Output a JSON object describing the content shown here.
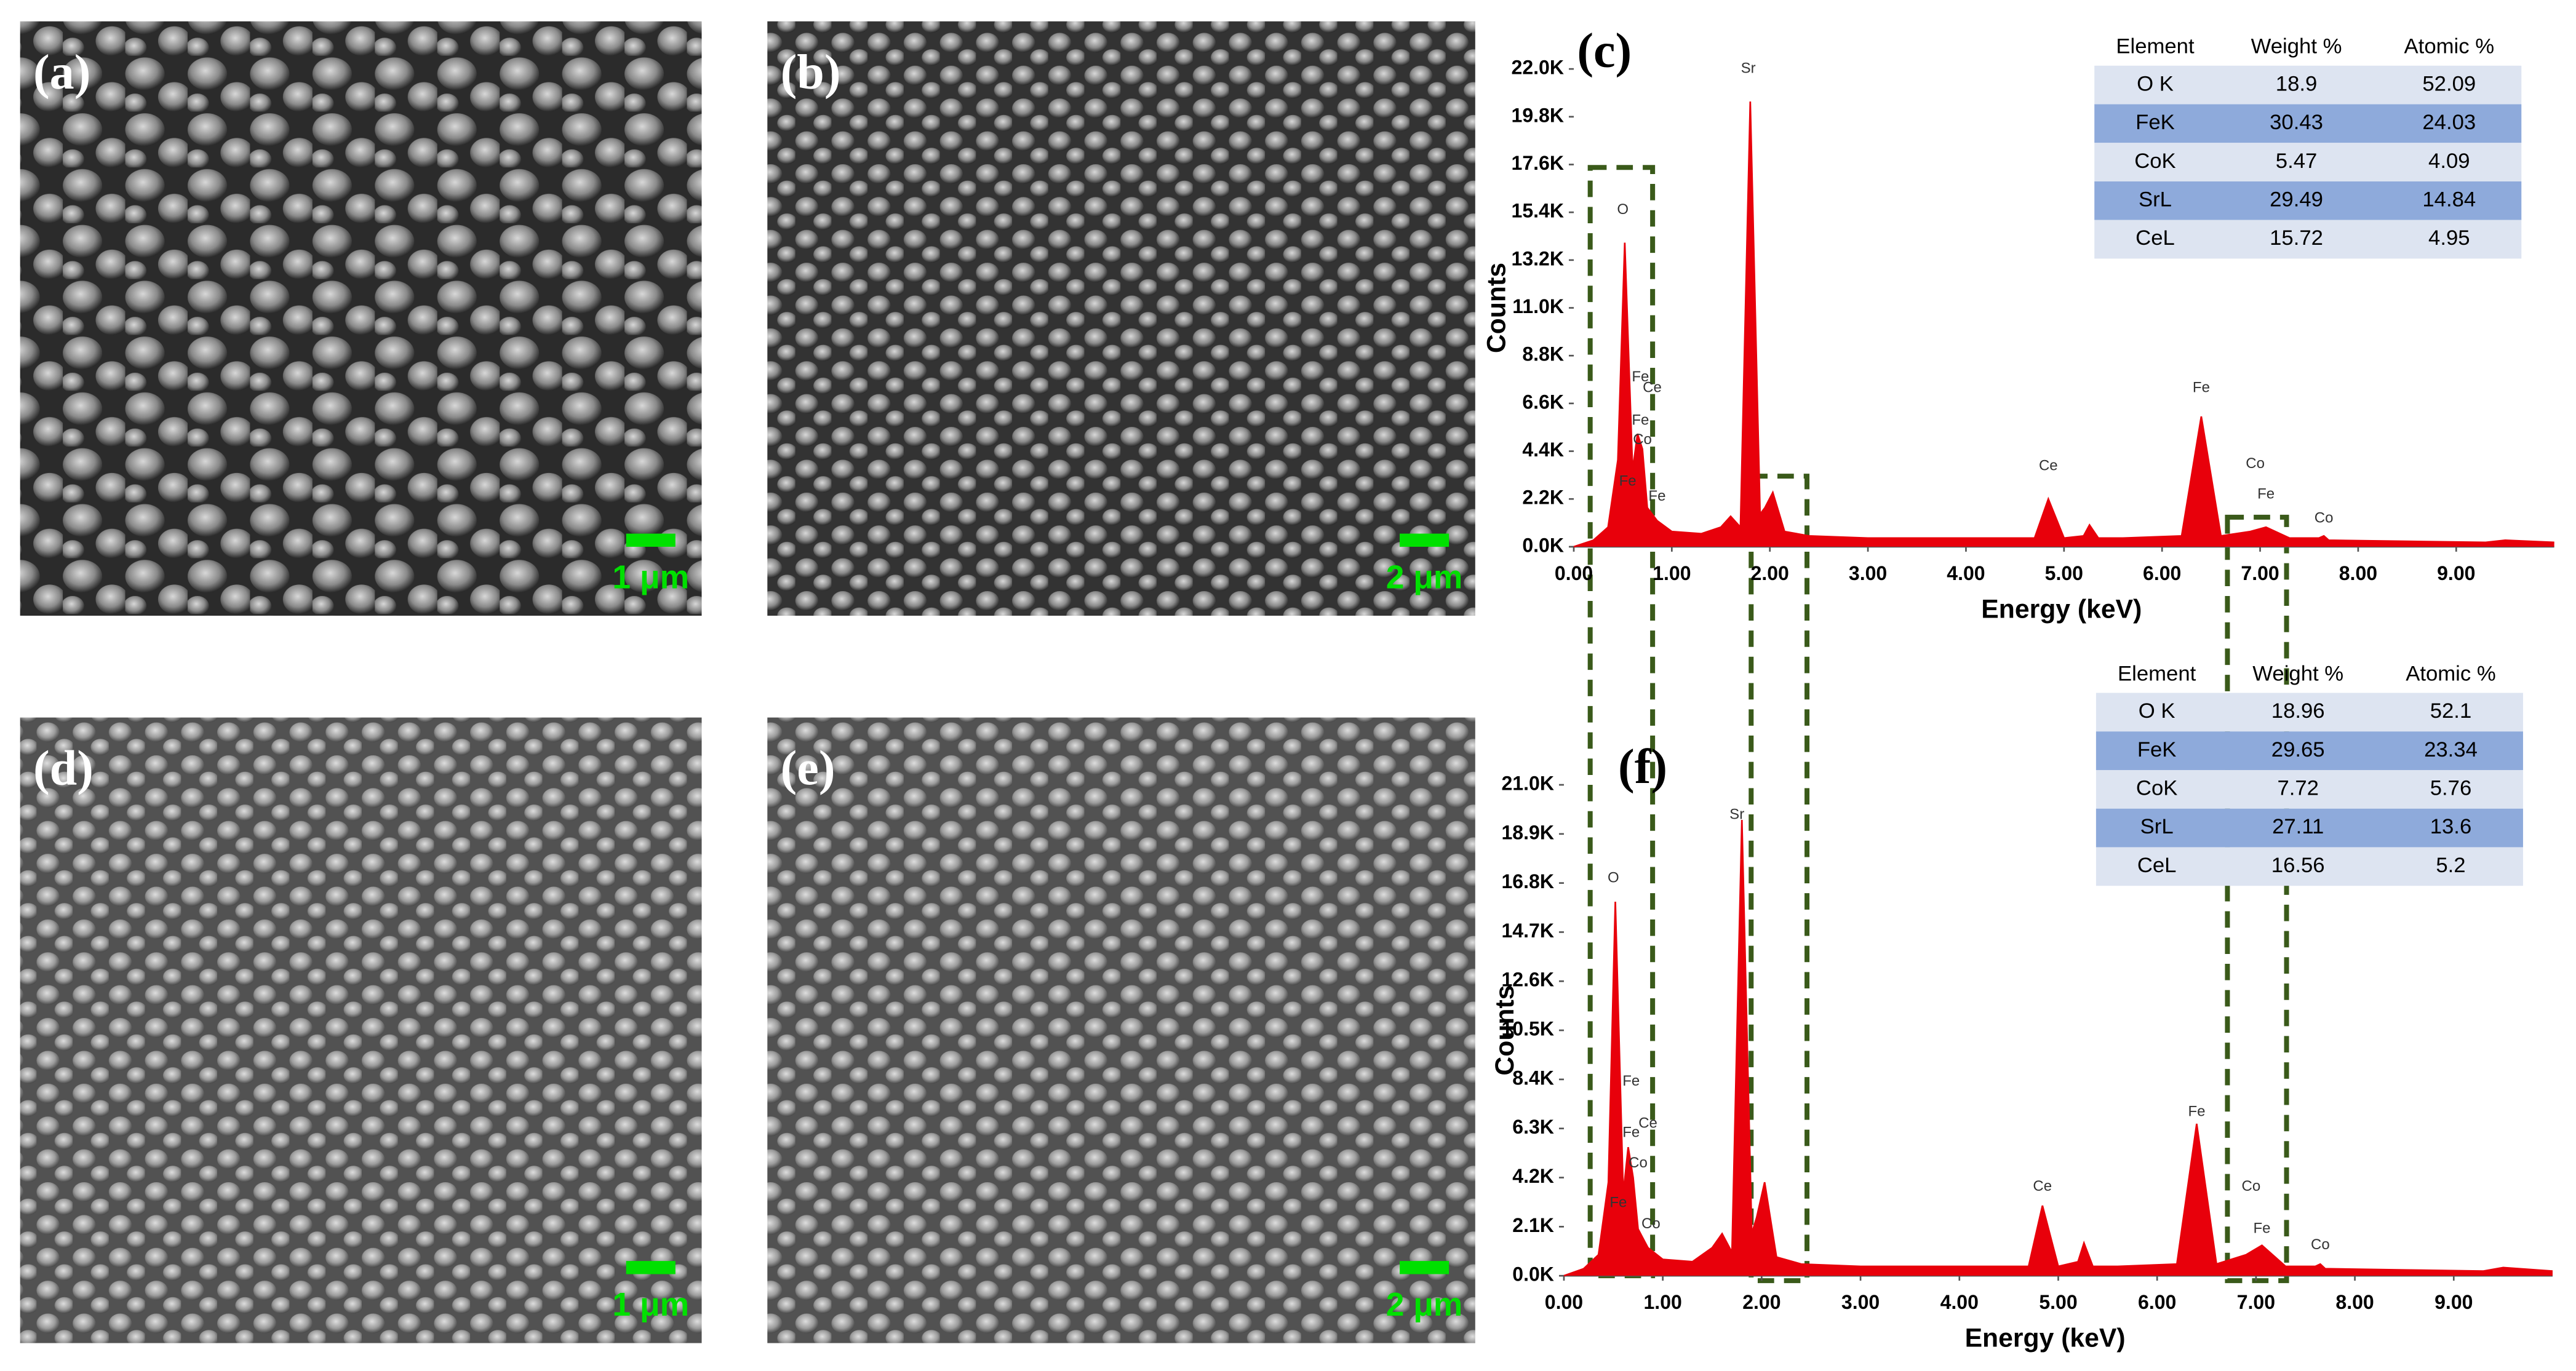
{
  "images": [
    {
      "label": "(a)",
      "scale": "1 μm"
    },
    {
      "label": "(b)",
      "scale": "2 μm"
    },
    {
      "label": "(d)",
      "scale": "1 μm"
    },
    {
      "label": "(e)",
      "scale": "2 μm"
    }
  ],
  "chart_data": [
    {
      "type": "area",
      "label": "(c)",
      "ylabel": "Counts",
      "xlabel": "Energy (keV)",
      "color": "#e8000b",
      "x": [
        0,
        0.2,
        0.35,
        0.45,
        0.52,
        0.6,
        0.65,
        0.7,
        0.75,
        0.85,
        1.0,
        1.3,
        1.5,
        1.6,
        1.7,
        1.8,
        1.9,
        1.95,
        2.03,
        2.15,
        2.4,
        3.0,
        4.0,
        4.7,
        4.84,
        5.0,
        5.2,
        5.26,
        5.35,
        5.6,
        6.2,
        6.4,
        6.6,
        6.9,
        7.06,
        7.3,
        7.6,
        7.65,
        7.7,
        8.5,
        9.3,
        9.5,
        10
      ],
      "values": [
        0,
        300,
        900,
        4000,
        14000,
        3500,
        5200,
        4500,
        1800,
        1200,
        700,
        600,
        900,
        1400,
        900,
        20500,
        1500,
        1800,
        2500,
        700,
        500,
        400,
        400,
        400,
        2200,
        400,
        500,
        1000,
        400,
        400,
        500,
        6000,
        500,
        700,
        900,
        400,
        400,
        500,
        300,
        250,
        200,
        300,
        200
      ],
      "xlim": [
        0,
        10
      ],
      "ylim": [
        0,
        22000
      ],
      "xticks": [
        {
          "value": 0,
          "label": "0.00"
        },
        {
          "value": 1,
          "label": "1.00"
        },
        {
          "value": 2,
          "label": "2.00"
        },
        {
          "value": 3,
          "label": "3.00"
        },
        {
          "value": 4,
          "label": "4.00"
        },
        {
          "value": 5,
          "label": "5.00"
        },
        {
          "value": 6,
          "label": "6.00"
        },
        {
          "value": 7,
          "label": "7.00"
        },
        {
          "value": 8,
          "label": "8.00"
        },
        {
          "value": 9,
          "label": "9.00"
        }
      ],
      "yticks": [
        {
          "value": 0,
          "label": "0.0K"
        },
        {
          "value": 2200,
          "label": "2.2K"
        },
        {
          "value": 4400,
          "label": "4.4K"
        },
        {
          "value": 6600,
          "label": "6.6K"
        },
        {
          "value": 8800,
          "label": "8.8K"
        },
        {
          "value": 11000,
          "label": "11.0K"
        },
        {
          "value": 13200,
          "label": "13.2K"
        },
        {
          "value": 15400,
          "label": "15.4K"
        },
        {
          "value": 17600,
          "label": "17.6K"
        },
        {
          "value": 19800,
          "label": "19.8K"
        },
        {
          "value": 22000,
          "label": "22.0K"
        }
      ],
      "annotations": [
        {
          "text": "O",
          "x": 0.5,
          "y": 15500
        },
        {
          "text": "Fe",
          "x": 0.68,
          "y": 7800
        },
        {
          "text": "Ce",
          "x": 0.8,
          "y": 7300
        },
        {
          "text": "Fe",
          "x": 0.68,
          "y": 5800
        },
        {
          "text": "Co",
          "x": 0.7,
          "y": 4900
        },
        {
          "text": "Fe",
          "x": 0.55,
          "y": 3000
        },
        {
          "text": "Fe",
          "x": 0.85,
          "y": 2300
        },
        {
          "text": "Sr",
          "x": 1.78,
          "y": 22000
        },
        {
          "text": "Ce",
          "x": 4.84,
          "y": 3700
        },
        {
          "text": "Fe",
          "x": 6.4,
          "y": 7300
        },
        {
          "text": "Co",
          "x": 6.95,
          "y": 3800
        },
        {
          "text": "Fe",
          "x": 7.06,
          "y": 2400
        },
        {
          "text": "Co",
          "x": 7.65,
          "y": 1300
        }
      ],
      "table": {
        "header": [
          "Element",
          "Weight %",
          "Atomic %"
        ],
        "rows": [
          [
            "O K",
            18.9,
            52.09
          ],
          [
            "FeK",
            30.43,
            24.03
          ],
          [
            "CoK",
            5.47,
            4.09
          ],
          [
            "SrL",
            29.49,
            14.84
          ],
          [
            "CeL",
            15.72,
            4.95
          ]
        ]
      }
    },
    {
      "type": "area",
      "label": "(f)",
      "ylabel": "Counts",
      "xlabel": "Energy (keV)",
      "color": "#e8000b",
      "x": [
        0,
        0.2,
        0.35,
        0.45,
        0.52,
        0.6,
        0.65,
        0.7,
        0.75,
        0.85,
        1.0,
        1.3,
        1.5,
        1.6,
        1.7,
        1.8,
        1.9,
        1.95,
        2.03,
        2.15,
        2.4,
        3.0,
        4.0,
        4.7,
        4.84,
        5.0,
        5.2,
        5.26,
        5.35,
        5.6,
        6.2,
        6.4,
        6.6,
        6.9,
        7.06,
        7.3,
        7.6,
        7.65,
        7.7,
        8.5,
        9.3,
        9.5,
        10
      ],
      "values": [
        0,
        300,
        900,
        4000,
        16000,
        3500,
        5500,
        4200,
        2000,
        1200,
        700,
        600,
        1200,
        1800,
        1000,
        19500,
        1800,
        2500,
        4000,
        800,
        500,
        400,
        400,
        400,
        3000,
        400,
        600,
        1400,
        400,
        400,
        500,
        6500,
        500,
        900,
        1300,
        400,
        400,
        500,
        300,
        250,
        200,
        350,
        200
      ],
      "xlim": [
        0,
        10
      ],
      "ylim": [
        0,
        21000
      ],
      "xticks": [
        {
          "value": 0,
          "label": "0.00"
        },
        {
          "value": 1,
          "label": "1.00"
        },
        {
          "value": 2,
          "label": "2.00"
        },
        {
          "value": 3,
          "label": "3.00"
        },
        {
          "value": 4,
          "label": "4.00"
        },
        {
          "value": 5,
          "label": "5.00"
        },
        {
          "value": 6,
          "label": "6.00"
        },
        {
          "value": 7,
          "label": "7.00"
        },
        {
          "value": 8,
          "label": "8.00"
        },
        {
          "value": 9,
          "label": "9.00"
        }
      ],
      "yticks": [
        {
          "value": 0,
          "label": "0.0K"
        },
        {
          "value": 2100,
          "label": "2.1K"
        },
        {
          "value": 4200,
          "label": "4.2K"
        },
        {
          "value": 6300,
          "label": "6.3K"
        },
        {
          "value": 8400,
          "label": "8.4K"
        },
        {
          "value": 10500,
          "label": "10.5K"
        },
        {
          "value": 12600,
          "label": "12.6K"
        },
        {
          "value": 14700,
          "label": "14.7K"
        },
        {
          "value": 16800,
          "label": "16.8K"
        },
        {
          "value": 18900,
          "label": "18.9K"
        },
        {
          "value": 21000,
          "label": "21.0K"
        }
      ],
      "annotations": [
        {
          "text": "O",
          "x": 0.5,
          "y": 17000
        },
        {
          "text": "Fe",
          "x": 0.68,
          "y": 8300
        },
        {
          "text": "Ce",
          "x": 0.85,
          "y": 6500
        },
        {
          "text": "Fe",
          "x": 0.68,
          "y": 6100
        },
        {
          "text": "Co",
          "x": 0.75,
          "y": 4800
        },
        {
          "text": "Fe",
          "x": 0.55,
          "y": 3100
        },
        {
          "text": "Co",
          "x": 0.88,
          "y": 2200
        },
        {
          "text": "Sr",
          "x": 1.75,
          "y": 19700
        },
        {
          "text": "Ce",
          "x": 4.84,
          "y": 3800
        },
        {
          "text": "Fe",
          "x": 6.4,
          "y": 7000
        },
        {
          "text": "Co",
          "x": 6.95,
          "y": 3800
        },
        {
          "text": "Fe",
          "x": 7.06,
          "y": 2000
        },
        {
          "text": "Co",
          "x": 7.65,
          "y": 1300
        }
      ],
      "table": {
        "header": [
          "Element",
          "Weight %",
          "Atomic %"
        ],
        "rows": [
          [
            "O K",
            18.96,
            52.1
          ],
          [
            "FeK",
            29.65,
            23.34
          ],
          [
            "CoK",
            7.72,
            5.76
          ],
          [
            "SrL",
            27.11,
            13.6
          ],
          [
            "CeL",
            16.56,
            5.2
          ]
        ]
      }
    }
  ]
}
